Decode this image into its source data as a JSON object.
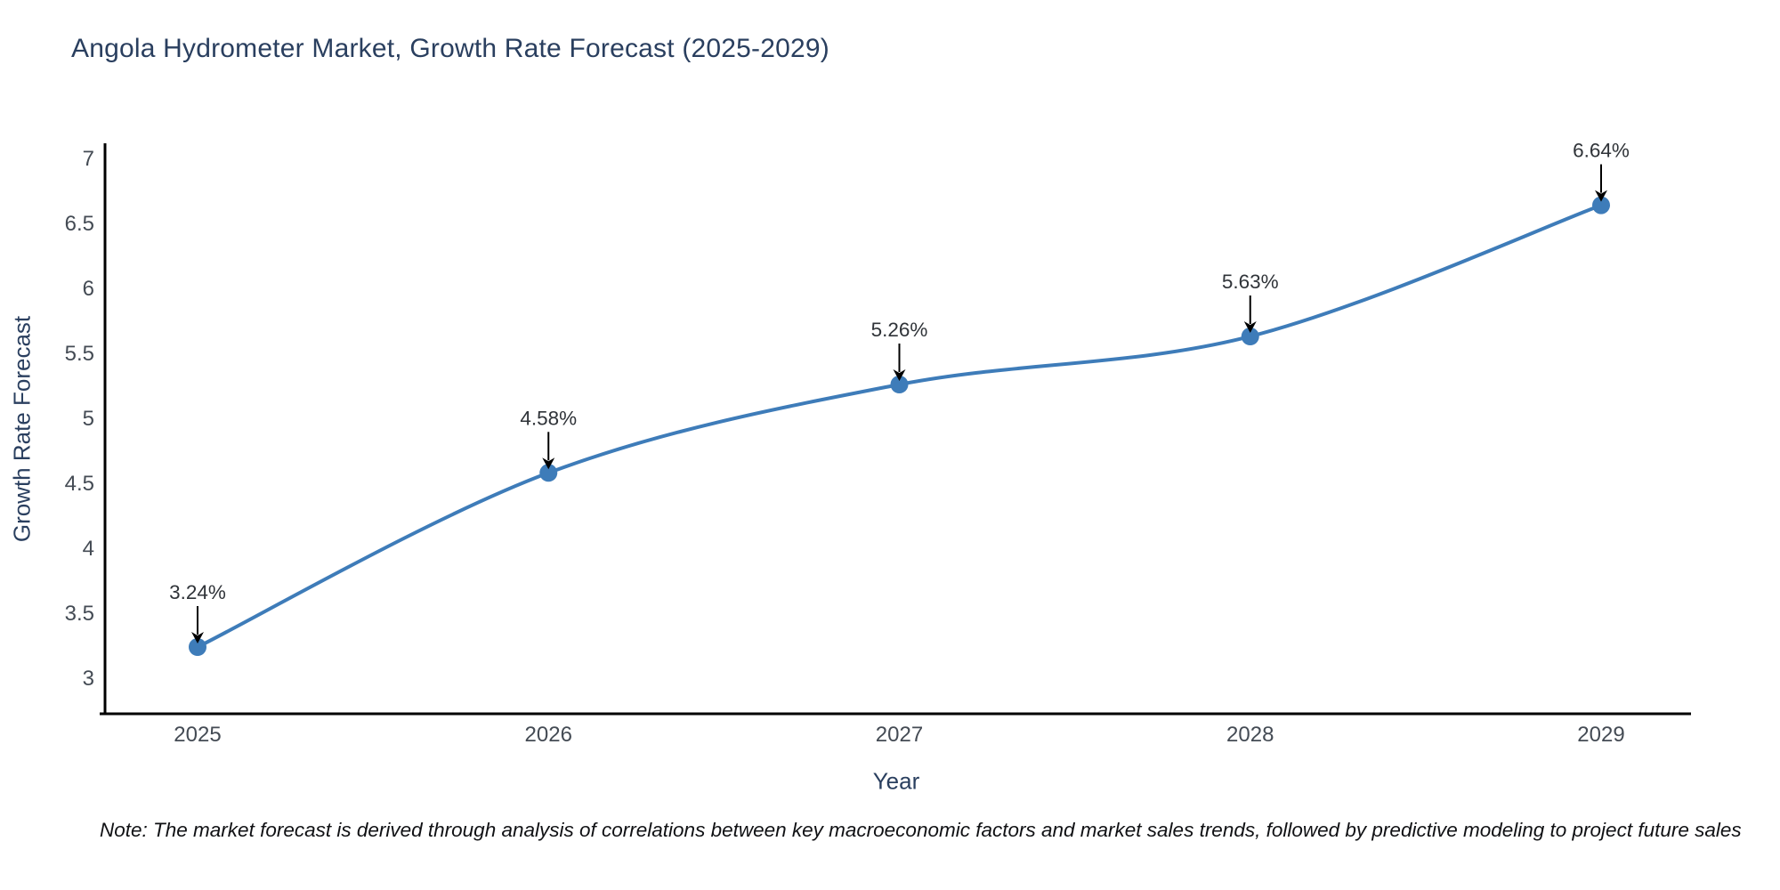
{
  "note": "Note: The market forecast is derived through analysis of correlations between key macroeconomic factors and market sales trends, followed by predictive modeling to project future sales",
  "colors": {
    "title_text": "#2a3f5f",
    "axis_title_text": "#2a3f5f",
    "tick_text": "#444b54",
    "annotation_text": "#2f3338",
    "annotation_arrow": "#000000",
    "note_text": "#101114",
    "axis_spine": "#000000",
    "line": "#3e7cb9",
    "marker": "#3e7cb9",
    "background": "#ffffff"
  },
  "chart_data": {
    "type": "line",
    "title": "Angola Hydrometer Market, Growth Rate Forecast (2025-2029)",
    "xlabel": "Year",
    "ylabel": "Growth Rate Forecast",
    "categories": [
      "2025",
      "2026",
      "2027",
      "2028",
      "2029"
    ],
    "series": [
      {
        "name": "Growth Rate Forecast",
        "values": [
          3.24,
          4.58,
          5.26,
          5.63,
          6.64
        ]
      }
    ],
    "point_labels": [
      "3.24%",
      "4.58%",
      "5.26%",
      "5.63%",
      "6.64%"
    ],
    "y_ticks": [
      3,
      3.5,
      4,
      4.5,
      5,
      5.5,
      6,
      6.5,
      7
    ],
    "y_tick_labels": [
      "3",
      "3.5",
      "4",
      "4.5",
      "5",
      "5.5",
      "6",
      "6.5",
      "7"
    ],
    "ylim": [
      2.73,
      7.12
    ],
    "grid": false,
    "legend_position": "none",
    "line_shape": "spline",
    "annotations_have_arrows": true
  }
}
